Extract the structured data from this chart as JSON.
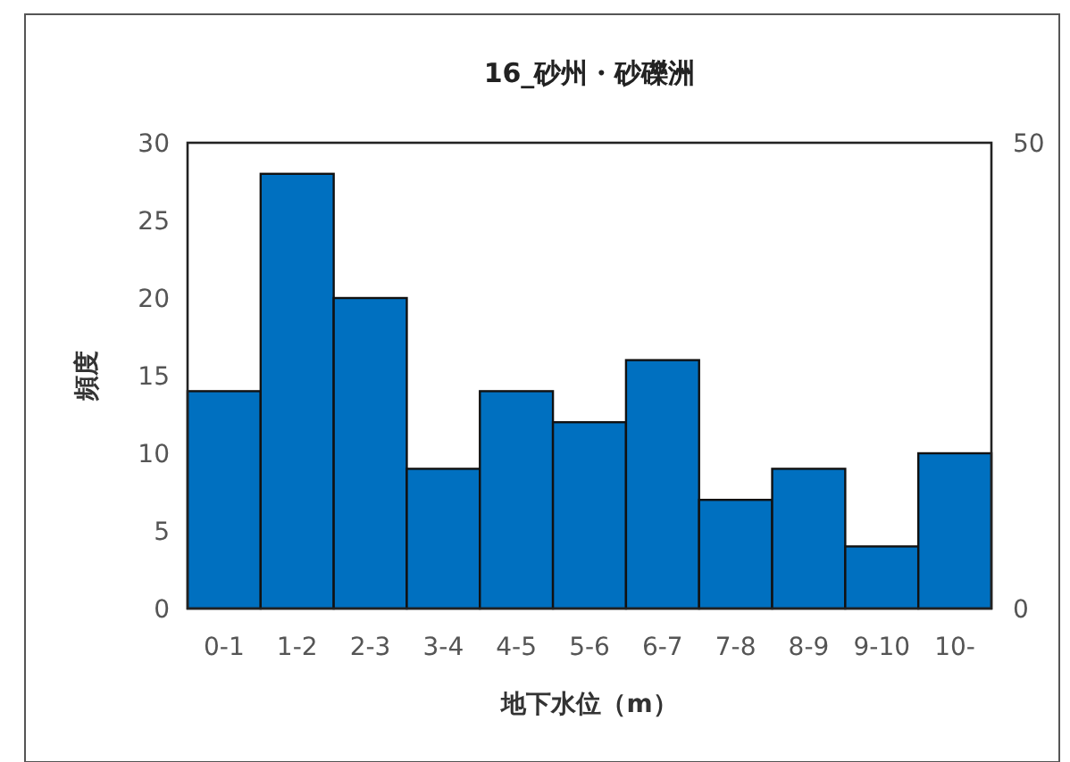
{
  "chart_data": {
    "type": "bar",
    "title": "16_砂州・砂礫洲",
    "xlabel": "地下水位（m）",
    "ylabel": "頻度",
    "categories": [
      "0-1",
      "1-2",
      "2-3",
      "3-4",
      "4-5",
      "5-6",
      "6-7",
      "7-8",
      "8-9",
      "9-10",
      "10-"
    ],
    "values": [
      14,
      28,
      20,
      9,
      14,
      12,
      16,
      7,
      9,
      4,
      10
    ],
    "color": "#0070c0",
    "ylim": [
      0,
      30
    ],
    "yticks": [
      0,
      5,
      10,
      15,
      20,
      25,
      30
    ],
    "y2lim": [
      0,
      50
    ],
    "y2ticks": [
      0,
      50
    ],
    "grid": false
  }
}
